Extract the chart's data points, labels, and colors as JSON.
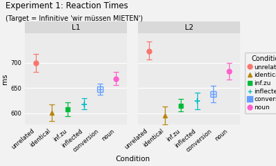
{
  "title": "Experiment 1: Reaction Times",
  "subtitle": "(Target = Infinitive 'wir müssen MIETEN')",
  "xlabel": "Condition",
  "ylabel": "ms",
  "ylim": [
    578,
    758
  ],
  "yticks": [
    600,
    650,
    700
  ],
  "panels": [
    "L1",
    "L2"
  ],
  "conditions": [
    "unrelated",
    "identical",
    "inf.zu",
    "inflected",
    "conversion",
    "noun"
  ],
  "data": {
    "L1": {
      "unrelated": {
        "y": 699,
        "ylo": 681,
        "yhi": 717
      },
      "identical": {
        "y": 601,
        "ylo": 585,
        "yhi": 618
      },
      "inf.zu": {
        "y": 608,
        "ylo": 594,
        "yhi": 622
      },
      "inflected": {
        "y": 618,
        "ylo": 608,
        "yhi": 630
      },
      "conversion": {
        "y": 647,
        "ylo": 636,
        "yhi": 658
      },
      "noun": {
        "y": 668,
        "ylo": 656,
        "yhi": 681
      }
    },
    "L2": {
      "unrelated": {
        "y": 723,
        "ylo": 706,
        "yhi": 741
      },
      "identical": {
        "y": 596,
        "ylo": 578,
        "yhi": 614
      },
      "inf.zu": {
        "y": 615,
        "ylo": 604,
        "yhi": 628
      },
      "inflected": {
        "y": 624,
        "ylo": 608,
        "yhi": 641
      },
      "conversion": {
        "y": 638,
        "ylo": 622,
        "yhi": 655
      },
      "noun": {
        "y": 683,
        "ylo": 666,
        "yhi": 700
      }
    }
  },
  "colors": {
    "unrelated": "#F8766D",
    "identical": "#B8860B",
    "inf.zu": "#00BA38",
    "inflected": "#00BFC4",
    "conversion": "#619CFF",
    "noun": "#FF61CC"
  },
  "panel_bg": "#EBEBEB",
  "panel_header_bg": "#D9D9D9",
  "grid_color": "#FFFFFF",
  "fig_bg": "#F2F2F2",
  "title_fontsize": 8.5,
  "subtitle_fontsize": 7,
  "label_fontsize": 7.5,
  "tick_fontsize": 6,
  "legend_fontsize": 6.5
}
